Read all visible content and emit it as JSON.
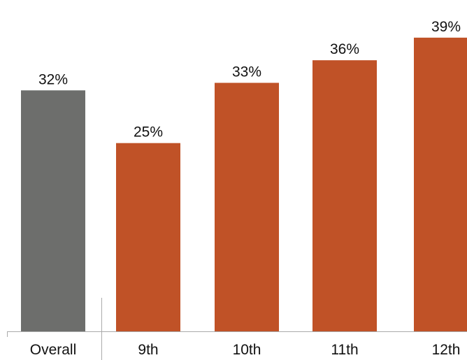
{
  "chart_data": {
    "type": "bar",
    "categories": [
      "Overall",
      "9th",
      "10th",
      "11th",
      "12th"
    ],
    "values": [
      32,
      25,
      33,
      36,
      39
    ],
    "value_labels": [
      "32%",
      "25%",
      "33%",
      "36%",
      "39%"
    ],
    "unit": "%",
    "title": "",
    "xlabel": "",
    "ylabel": "",
    "ylim": [
      0,
      44
    ],
    "grid": false,
    "legend": "none",
    "colors": {
      "overall": "#6d6e6c",
      "grades": "#c05227",
      "axis": "#aaaaaa"
    }
  }
}
